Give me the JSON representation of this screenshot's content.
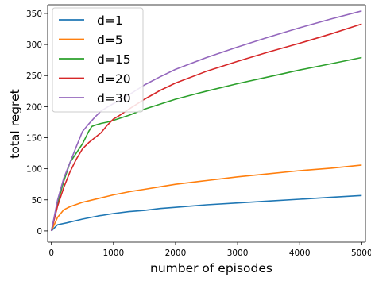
{
  "chart_data": {
    "type": "line",
    "title": "",
    "xlabel": "number of episodes",
    "ylabel": "total regret",
    "xlim": [
      -60,
      5060
    ],
    "ylim": [
      -18,
      364
    ],
    "xticks": [
      0,
      1000,
      2000,
      3000,
      4000,
      5000
    ],
    "yticks": [
      0,
      50,
      100,
      150,
      200,
      250,
      300,
      350
    ],
    "grid": false,
    "legend_position": "top-left",
    "series": [
      {
        "name": "d=1",
        "color": "#1f77b4",
        "x": [
          0,
          100,
          250,
          500,
          750,
          1000,
          1250,
          1500,
          1750,
          2000,
          2500,
          3000,
          3500,
          4000,
          4500,
          5000
        ],
        "y": [
          0,
          10,
          13,
          19,
          24,
          28,
          31,
          33,
          36,
          38,
          42,
          45,
          48,
          51,
          54,
          57
        ]
      },
      {
        "name": "d=5",
        "color": "#ff7f0e",
        "x": [
          0,
          100,
          200,
          300,
          500,
          750,
          1000,
          1250,
          1500,
          1750,
          2000,
          2500,
          3000,
          3500,
          4000,
          4500,
          5000
        ],
        "y": [
          0,
          22,
          34,
          39,
          46,
          52,
          58,
          63,
          67,
          71,
          75,
          81,
          87,
          92,
          97,
          101,
          106
        ]
      },
      {
        "name": "d=15",
        "color": "#2ca02c",
        "x": [
          0,
          100,
          200,
          300,
          400,
          500,
          600,
          650,
          700,
          800,
          900,
          1000,
          1250,
          1500,
          1750,
          2000,
          2500,
          3000,
          3500,
          4000,
          4500,
          5000
        ],
        "y": [
          0,
          45,
          80,
          110,
          125,
          140,
          160,
          168,
          170,
          173,
          175,
          178,
          186,
          196,
          204,
          212,
          225,
          237,
          248,
          259,
          269,
          279
        ]
      },
      {
        "name": "d=20",
        "color": "#d62728",
        "x": [
          0,
          100,
          200,
          300,
          400,
          500,
          600,
          700,
          800,
          900,
          1000,
          1100,
          1250,
          1500,
          1750,
          2000,
          2500,
          3000,
          3500,
          4000,
          4500,
          5000
        ],
        "y": [
          0,
          40,
          70,
          95,
          115,
          132,
          142,
          150,
          158,
          170,
          180,
          186,
          196,
          212,
          226,
          238,
          257,
          273,
          288,
          302,
          317,
          333
        ]
      },
      {
        "name": "d=30",
        "color": "#9467bd",
        "x": [
          0,
          100,
          200,
          300,
          400,
          500,
          600,
          700,
          800,
          900,
          1000,
          1250,
          1500,
          1750,
          2000,
          2500,
          3000,
          3500,
          4000,
          4500,
          5000
        ],
        "y": [
          0,
          50,
          85,
          110,
          135,
          160,
          172,
          183,
          193,
          199,
          205,
          219,
          235,
          248,
          260,
          279,
          296,
          312,
          327,
          341,
          354
        ]
      }
    ]
  }
}
